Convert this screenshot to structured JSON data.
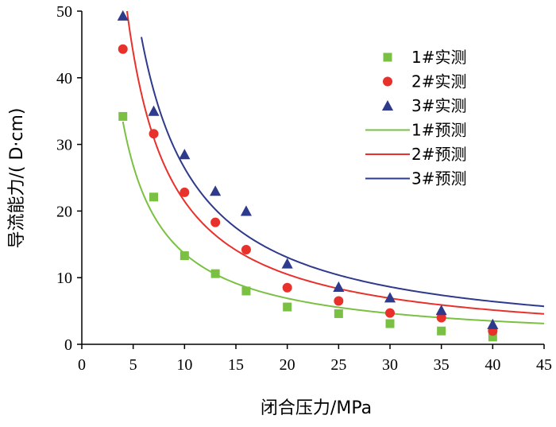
{
  "chart_data": {
    "type": "scatter",
    "title": "",
    "xlabel": "闭合压力/MPa",
    "ylabel": "导流能力/( D·cm)",
    "xlim": [
      0,
      45
    ],
    "ylim": [
      0,
      50
    ],
    "xticks": [
      0,
      5,
      10,
      15,
      20,
      25,
      30,
      35,
      40,
      45
    ],
    "yticks": [
      0,
      10,
      20,
      30,
      40,
      50
    ],
    "x_tick_labels": [
      "0",
      "5",
      "10",
      "15",
      "20",
      "25",
      "30",
      "35",
      "40",
      "45"
    ],
    "y_tick_labels": [
      "0",
      "10",
      "20",
      "30",
      "40",
      "50"
    ],
    "grid": false,
    "legend_position": "top-right",
    "measured_series": [
      {
        "name": "1#实测",
        "marker": "square",
        "color": "#7ac143",
        "x": [
          4,
          7,
          10,
          13,
          16,
          20,
          25,
          30,
          35,
          40
        ],
        "y": [
          34.2,
          22.1,
          13.3,
          10.6,
          8.0,
          5.6,
          4.6,
          3.1,
          2.0,
          1.1
        ]
      },
      {
        "name": "2#实测",
        "marker": "circle",
        "color": "#e8312a",
        "x": [
          4,
          7,
          10,
          13,
          16,
          20,
          25,
          30,
          35,
          40
        ],
        "y": [
          44.3,
          31.6,
          22.8,
          18.3,
          14.2,
          8.5,
          6.5,
          4.7,
          4.0,
          2.0
        ]
      },
      {
        "name": "3#实测",
        "marker": "triangle",
        "color": "#2e3a8c",
        "x": [
          4,
          7,
          10,
          13,
          16,
          20,
          25,
          30,
          35,
          40
        ],
        "y": [
          49.3,
          35.0,
          28.5,
          23.0,
          20.0,
          12.1,
          8.6,
          7.0,
          5.1,
          3.0
        ]
      }
    ],
    "predicted_series": [
      {
        "name": "1#预测",
        "color": "#7ac143",
        "a": 130,
        "b": -0.98,
        "x_start": 4,
        "x_end": 45
      },
      {
        "name": "2#预测",
        "color": "#e8312a",
        "a": 230,
        "b": -1.03,
        "x_start": 4.1,
        "x_end": 45
      },
      {
        "name": "3#预测",
        "color": "#2e3a8c",
        "a": 277,
        "b": -1.02,
        "x_start": 5.8,
        "x_end": 45
      }
    ]
  }
}
